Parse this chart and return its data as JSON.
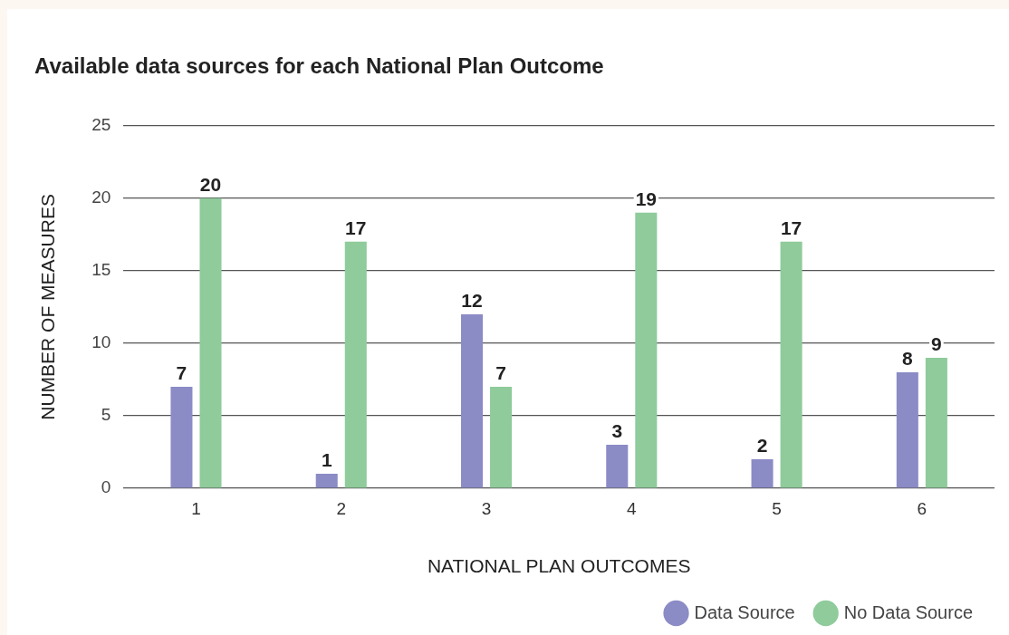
{
  "chart_data": {
    "type": "bar",
    "title": "Available data sources for each National Plan Outcome",
    "xlabel": "NATIONAL PLAN OUTCOMES",
    "ylabel": "NUMBER OF MEASURES",
    "categories": [
      "1",
      "2",
      "3",
      "4",
      "5",
      "6"
    ],
    "series": [
      {
        "name": "Data Source",
        "color": "#8b8bc6",
        "values": [
          7,
          1,
          12,
          3,
          2,
          8
        ]
      },
      {
        "name": "No Data Source",
        "color": "#8fcb9b",
        "values": [
          20,
          17,
          7,
          19,
          17,
          9
        ]
      }
    ],
    "ylim": [
      0,
      25
    ],
    "yticks": [
      0,
      5,
      10,
      15,
      20,
      25
    ],
    "grid": "y",
    "legend": "bottom right",
    "data_labels": true
  }
}
